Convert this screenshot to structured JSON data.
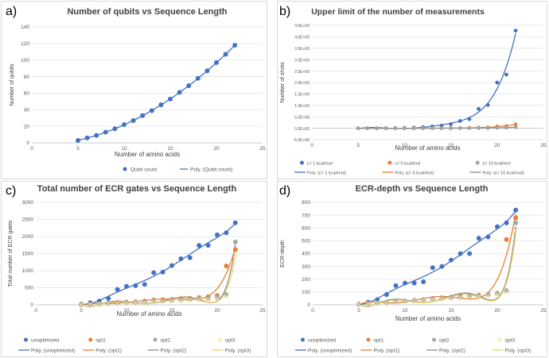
{
  "chart_data": [
    {
      "letter": "a)",
      "type": "scatter",
      "title": "Number of qubits vs Sequence Length",
      "xlabel": "Number of amino acids",
      "ylabel": "Number of qubits",
      "xlim": [
        0,
        25
      ],
      "ylim": [
        0,
        140
      ],
      "xticks": [
        "0",
        "5",
        "10",
        "15",
        "20",
        "25"
      ],
      "yticks": [
        "0",
        "20",
        "40",
        "60",
        "80",
        "100",
        "120",
        "140"
      ],
      "grid": "horizontal",
      "legend_position": "bottom",
      "series": [
        {
          "name": "Qubit count",
          "color": "#4472c4",
          "fit_label": "Poly. (Qubit count)",
          "x": [
            5,
            6,
            7,
            8,
            9,
            10,
            11,
            12,
            13,
            14,
            15,
            16,
            17,
            18,
            19,
            20,
            21,
            22
          ],
          "y": [
            3,
            6,
            9,
            13,
            17,
            22,
            27,
            33,
            39,
            46,
            53,
            61,
            69,
            78,
            87,
            97,
            107,
            118
          ]
        }
      ]
    },
    {
      "letter": "b)",
      "type": "scatter",
      "title": "Upper limit of the number of measurements",
      "xlabel": "Number of amino acids",
      "ylabel": "Number of shots",
      "xlim": [
        0,
        25
      ],
      "ylim": [
        -500000000,
        4500000000
      ],
      "xticks": [
        "0",
        "5",
        "10",
        "15",
        "20",
        "25"
      ],
      "yticks": [
        "-5.0E+08",
        "0.0E+00",
        "5.0E+08",
        "1.0E+09",
        "1.5E+09",
        "2.0E+09",
        "2.5E+09",
        "3.0E+09",
        "3.5E+09",
        "4.0E+09",
        "4.5E+09"
      ],
      "grid": "horizontal",
      "legend_position": "bottom",
      "series": [
        {
          "name": "ε= 1 kcal/mol",
          "color": "#4472c4",
          "fit_label": "Poly. (ε= 1 kcal/mol)",
          "x": [
            5,
            6,
            7,
            8,
            9,
            10,
            11,
            12,
            13,
            14,
            15,
            16,
            17,
            18,
            19,
            20,
            21,
            22
          ],
          "y": [
            0,
            1000000,
            2000000,
            5000000,
            10000000,
            20000000,
            30000000,
            50000000,
            80000000,
            120000000,
            180000000,
            320000000,
            400000000,
            850000000,
            1020000000,
            2000000000,
            2350000000,
            4270000000
          ]
        },
        {
          "name": "ε= 5 kcal/mol",
          "color": "#ed7d31",
          "fit_label": "Poly. (ε= 5 kcal/mol)",
          "x": [
            5,
            6,
            7,
            8,
            9,
            10,
            11,
            12,
            13,
            14,
            15,
            16,
            17,
            18,
            19,
            20,
            21,
            22
          ],
          "y": [
            0,
            0,
            0,
            0,
            0,
            1000000,
            2000000,
            3000000,
            4000000,
            6000000,
            8000000,
            12000000,
            17000000,
            30000000,
            40000000,
            80000000,
            95000000,
            170000000
          ]
        },
        {
          "name": "ε= 10 kcal/mol",
          "color": "#a5a5a5",
          "fit_label": "Poly. (ε= 10 kcal/mol)",
          "x": [
            5,
            6,
            7,
            8,
            9,
            10,
            11,
            12,
            13,
            14,
            15,
            16,
            17,
            18,
            19,
            20,
            21,
            22
          ],
          "y": [
            0,
            0,
            0,
            0,
            0,
            0,
            0,
            0,
            1000000,
            2000000,
            2000000,
            3000000,
            4000000,
            8000000,
            10000000,
            20000000,
            24000000,
            43000000
          ]
        }
      ]
    },
    {
      "letter": "c)",
      "type": "scatter",
      "title": "Total number of ECR gates vs Sequence Length",
      "xlabel": "Number of amino acids",
      "ylabel": "Total number of ECR gates",
      "xlim": [
        0,
        25
      ],
      "ylim": [
        0,
        3000
      ],
      "xticks": [
        "0",
        "5",
        "10",
        "15",
        "20",
        "25"
      ],
      "yticks": [
        "0",
        "500",
        "1000",
        "1500",
        "2000",
        "2500",
        "3000"
      ],
      "grid": "horizontal",
      "legend_position": "bottom",
      "series": [
        {
          "name": "unoptimized",
          "color": "#4472c4",
          "fit_label": "Poly. (unoptimized)",
          "x": [
            5,
            6,
            7,
            8,
            9,
            10,
            11,
            12,
            13,
            14,
            15,
            16,
            17,
            18,
            19,
            20,
            21,
            22
          ],
          "y": [
            20,
            60,
            110,
            190,
            450,
            540,
            560,
            600,
            940,
            960,
            1150,
            1350,
            1380,
            1740,
            1740,
            2050,
            2110,
            2400
          ]
        },
        {
          "name": "opt1",
          "color": "#ed7d31",
          "fit_label": "Poly. (opt1)",
          "x": [
            5,
            6,
            7,
            8,
            9,
            10,
            11,
            12,
            13,
            14,
            15,
            16,
            17,
            18,
            19,
            20,
            21,
            22
          ],
          "y": [
            10,
            20,
            30,
            50,
            70,
            80,
            90,
            110,
            140,
            150,
            160,
            180,
            190,
            210,
            230,
            270,
            1140,
            1620
          ]
        },
        {
          "name": "opt2",
          "color": "#a5a5a5",
          "fit_label": "Poly. (opt2)",
          "x": [
            5,
            6,
            7,
            8,
            9,
            10,
            11,
            12,
            13,
            14,
            15,
            16,
            17,
            18,
            19,
            20,
            21,
            22
          ],
          "y": [
            10,
            15,
            25,
            40,
            55,
            65,
            75,
            90,
            110,
            120,
            130,
            145,
            160,
            175,
            190,
            220,
            300,
            1840
          ]
        },
        {
          "name": "opt3",
          "color": "#ffc000",
          "fit_label": "Poly. (opt3)",
          "x": [
            5,
            6,
            7,
            8,
            9,
            10,
            11,
            12,
            13,
            14,
            15,
            16,
            17,
            18,
            19,
            20,
            21,
            22
          ],
          "y": [
            5,
            10,
            20,
            30,
            40,
            50,
            60,
            70,
            90,
            100,
            110,
            120,
            130,
            145,
            160,
            180,
            250,
            1450
          ]
        }
      ]
    },
    {
      "letter": "d)",
      "type": "scatter",
      "title": "ECR-depth vs Sequence Length",
      "xlabel": "Number of amino acids",
      "ylabel": "ECR-depth",
      "xlim": [
        0,
        25
      ],
      "ylim": [
        0,
        800
      ],
      "xticks": [
        "0",
        "5",
        "10",
        "15",
        "20",
        "25"
      ],
      "yticks": [
        "0",
        "100",
        "200",
        "300",
        "400",
        "500",
        "600",
        "700",
        "800"
      ],
      "grid": "horizontal",
      "legend_position": "bottom",
      "series": [
        {
          "name": "unoptimized",
          "color": "#4472c4",
          "fit_label": "Poly. (unoptimized)",
          "x": [
            5,
            6,
            7,
            8,
            9,
            10,
            11,
            12,
            13,
            14,
            15,
            16,
            17,
            18,
            19,
            20,
            21,
            22
          ],
          "y": [
            5,
            20,
            40,
            80,
            150,
            170,
            170,
            180,
            290,
            300,
            350,
            400,
            400,
            520,
            530,
            610,
            640,
            740
          ]
        },
        {
          "name": "opt1",
          "color": "#ed7d31",
          "fit_label": "Poly. (opt1)",
          "x": [
            5,
            6,
            7,
            8,
            9,
            10,
            11,
            12,
            13,
            14,
            15,
            16,
            17,
            18,
            19,
            20,
            21,
            22
          ],
          "y": [
            5,
            10,
            15,
            20,
            25,
            30,
            35,
            40,
            50,
            55,
            60,
            65,
            70,
            75,
            80,
            90,
            510,
            680
          ]
        },
        {
          "name": "opt2",
          "color": "#a5a5a5",
          "fit_label": "Poly. (opt2)",
          "x": [
            5,
            6,
            7,
            8,
            9,
            10,
            11,
            12,
            13,
            14,
            15,
            16,
            17,
            18,
            19,
            20,
            21,
            22
          ],
          "y": [
            5,
            10,
            15,
            20,
            25,
            30,
            35,
            40,
            45,
            50,
            55,
            60,
            70,
            75,
            80,
            90,
            110,
            640
          ]
        },
        {
          "name": "opt3",
          "color": "#ffc000",
          "fit_label": "Poly. (opt3)",
          "x": [
            5,
            6,
            7,
            8,
            9,
            10,
            11,
            12,
            13,
            14,
            15,
            16,
            17,
            18,
            19,
            20,
            21,
            22
          ],
          "y": [
            3,
            8,
            12,
            16,
            20,
            25,
            30,
            35,
            40,
            45,
            50,
            55,
            60,
            65,
            70,
            80,
            100,
            580
          ]
        }
      ]
    }
  ]
}
